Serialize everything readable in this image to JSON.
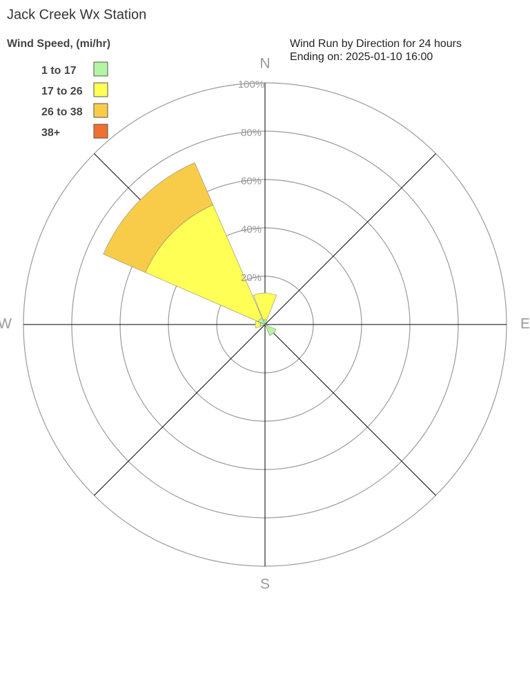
{
  "chart_data": {
    "type": "windrose",
    "title": "Jack Creek Wx Station",
    "legend_title": "Wind Speed, (mi/hr)",
    "subtitle": [
      "Wind Run by Direction for 24 hours",
      "Ending on: 2025-01-10 16:00"
    ],
    "categories": [
      "N",
      null,
      "E",
      null,
      "S",
      null,
      "W",
      null
    ],
    "series": [
      {
        "name": "1 to 17",
        "color": "#b3f5a3",
        "values": [
          2,
          0,
          0,
          5,
          0,
          0,
          2,
          3
        ]
      },
      {
        "name": "17 to 26",
        "color": "#ffff55",
        "values": [
          11,
          0,
          0,
          0,
          0,
          0,
          2,
          51
        ]
      },
      {
        "name": "26 to 38",
        "color": "#f8cc48",
        "values": [
          0,
          0,
          0,
          0,
          0,
          0,
          0,
          19
        ]
      },
      {
        "name": "38+",
        "color": "#f07030",
        "values": [
          0,
          0,
          0,
          0,
          0,
          0,
          0,
          0
        ]
      }
    ],
    "rlim": [
      0,
      100
    ],
    "rticks": [
      {
        "value": 20,
        "label": "20%"
      },
      {
        "value": 40,
        "label": "40%"
      },
      {
        "value": 60,
        "label": "60%"
      },
      {
        "value": 80,
        "label": "80%"
      },
      {
        "value": 100,
        "label": "100%"
      }
    ],
    "grid": true
  }
}
